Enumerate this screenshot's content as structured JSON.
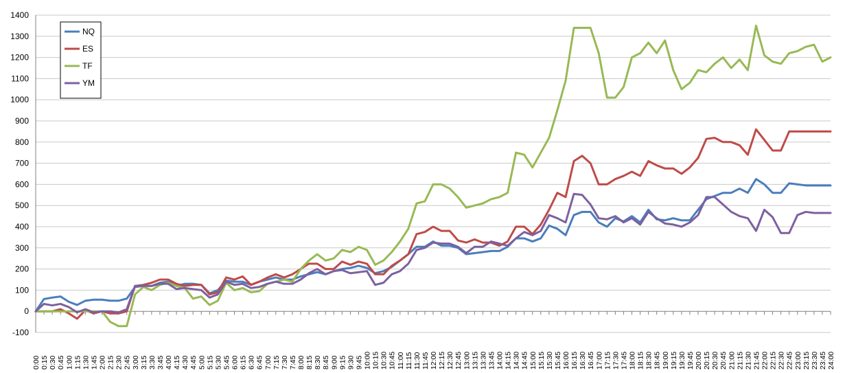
{
  "chart_data": {
    "type": "line",
    "title": "",
    "xlabel": "",
    "ylabel": "",
    "ylim": [
      -100,
      1400
    ],
    "ytick_step": 100,
    "grid": true,
    "legend_position": "top-left",
    "x": [
      "0:00",
      "0:15",
      "0:30",
      "0:45",
      "1:00",
      "1:15",
      "1:30",
      "1:45",
      "2:00",
      "2:15",
      "2:30",
      "2:45",
      "3:00",
      "3:15",
      "3:30",
      "3:45",
      "4:00",
      "4:15",
      "4:30",
      "4:45",
      "5:00",
      "5:15",
      "5:30",
      "5:45",
      "6:00",
      "6:15",
      "6:30",
      "6:45",
      "7:00",
      "7:15",
      "7:30",
      "7:45",
      "8:00",
      "8:15",
      "8:30",
      "8:45",
      "9:00",
      "9:15",
      "9:30",
      "9:45",
      "10:00",
      "10:15",
      "10:30",
      "10:45",
      "11:00",
      "11:15",
      "11:30",
      "11:45",
      "12:00",
      "12:15",
      "12:30",
      "12:45",
      "13:00",
      "13:15",
      "13:30",
      "13:45",
      "14:00",
      "14:15",
      "14:30",
      "14:45",
      "15:00",
      "15:15",
      "15:30",
      "15:45",
      "16:00",
      "16:15",
      "16:30",
      "16:45",
      "17:00",
      "17:15",
      "17:30",
      "17:45",
      "18:00",
      "18:15",
      "18:30",
      "18:45",
      "19:00",
      "19:15",
      "19:30",
      "19:45",
      "20:00",
      "20:15",
      "20:30",
      "20:45",
      "21:00",
      "21:15",
      "21:30",
      "21:45",
      "22:00",
      "22:15",
      "22:30",
      "22:45",
      "23:00",
      "23:15",
      "23:30",
      "23:45",
      "24:00"
    ],
    "x_label_every": 1,
    "series": [
      {
        "name": "NQ",
        "color": "#4a7ebb",
        "values": [
          0,
          58,
          65,
          70,
          45,
          30,
          50,
          55,
          55,
          50,
          50,
          60,
          115,
          120,
          120,
          135,
          140,
          120,
          130,
          130,
          125,
          85,
          100,
          145,
          140,
          140,
          125,
          140,
          150,
          160,
          150,
          150,
          165,
          175,
          185,
          175,
          190,
          200,
          205,
          215,
          205,
          180,
          190,
          210,
          240,
          270,
          305,
          305,
          330,
          310,
          310,
          300,
          270,
          275,
          280,
          285,
          285,
          305,
          345,
          345,
          330,
          345,
          405,
          390,
          360,
          455,
          470,
          470,
          420,
          400,
          440,
          425,
          450,
          420,
          480,
          435,
          430,
          440,
          430,
          430,
          480,
          530,
          545,
          560,
          560,
          580,
          560,
          625,
          600,
          560,
          560,
          605,
          600,
          595,
          595,
          595,
          595
        ]
      },
      {
        "name": "ES",
        "color": "#be4b48",
        "values": [
          0,
          0,
          0,
          10,
          -10,
          -35,
          5,
          -10,
          0,
          -10,
          -10,
          0,
          120,
          125,
          135,
          150,
          150,
          130,
          120,
          125,
          125,
          80,
          90,
          160,
          150,
          165,
          125,
          140,
          160,
          175,
          160,
          175,
          200,
          225,
          225,
          200,
          200,
          235,
          220,
          235,
          225,
          175,
          175,
          215,
          240,
          270,
          365,
          375,
          400,
          380,
          380,
          335,
          325,
          340,
          325,
          325,
          310,
          330,
          400,
          400,
          365,
          410,
          480,
          560,
          540,
          710,
          735,
          700,
          600,
          600,
          625,
          640,
          660,
          640,
          710,
          690,
          675,
          675,
          650,
          680,
          725,
          815,
          820,
          800,
          800,
          785,
          740,
          860,
          810,
          760,
          760,
          850,
          850,
          850,
          850,
          850,
          850
        ]
      },
      {
        "name": "TF",
        "color": "#98b954",
        "values": [
          0,
          0,
          0,
          0,
          0,
          0,
          0,
          0,
          0,
          -50,
          -70,
          -70,
          80,
          115,
          100,
          125,
          135,
          120,
          110,
          60,
          70,
          30,
          50,
          135,
          100,
          110,
          90,
          95,
          130,
          140,
          150,
          140,
          200,
          240,
          270,
          240,
          250,
          290,
          280,
          305,
          290,
          220,
          240,
          280,
          330,
          390,
          510,
          520,
          600,
          600,
          580,
          540,
          490,
          500,
          510,
          530,
          540,
          560,
          750,
          740,
          680,
          750,
          820,
          950,
          1090,
          1340,
          1340,
          1340,
          1220,
          1010,
          1010,
          1060,
          1200,
          1220,
          1270,
          1220,
          1280,
          1140,
          1050,
          1080,
          1140,
          1130,
          1170,
          1200,
          1150,
          1190,
          1140,
          1350,
          1210,
          1180,
          1170,
          1220,
          1230,
          1250,
          1260,
          1180,
          1200
        ]
      },
      {
        "name": "YM",
        "color": "#7d60a0",
        "values": [
          0,
          35,
          28,
          35,
          20,
          -5,
          10,
          -5,
          0,
          0,
          -5,
          10,
          120,
          120,
          120,
          130,
          130,
          105,
          110,
          105,
          100,
          65,
          80,
          140,
          125,
          130,
          110,
          115,
          130,
          140,
          130,
          130,
          150,
          180,
          200,
          175,
          190,
          195,
          180,
          185,
          190,
          125,
          135,
          175,
          190,
          225,
          290,
          300,
          325,
          320,
          320,
          305,
          275,
          305,
          305,
          330,
          320,
          310,
          345,
          375,
          360,
          380,
          455,
          440,
          420,
          555,
          550,
          505,
          440,
          435,
          450,
          420,
          440,
          410,
          470,
          440,
          415,
          410,
          400,
          420,
          455,
          540,
          540,
          505,
          470,
          450,
          440,
          380,
          480,
          445,
          370,
          370,
          455,
          470,
          465,
          465,
          465
        ]
      }
    ]
  }
}
